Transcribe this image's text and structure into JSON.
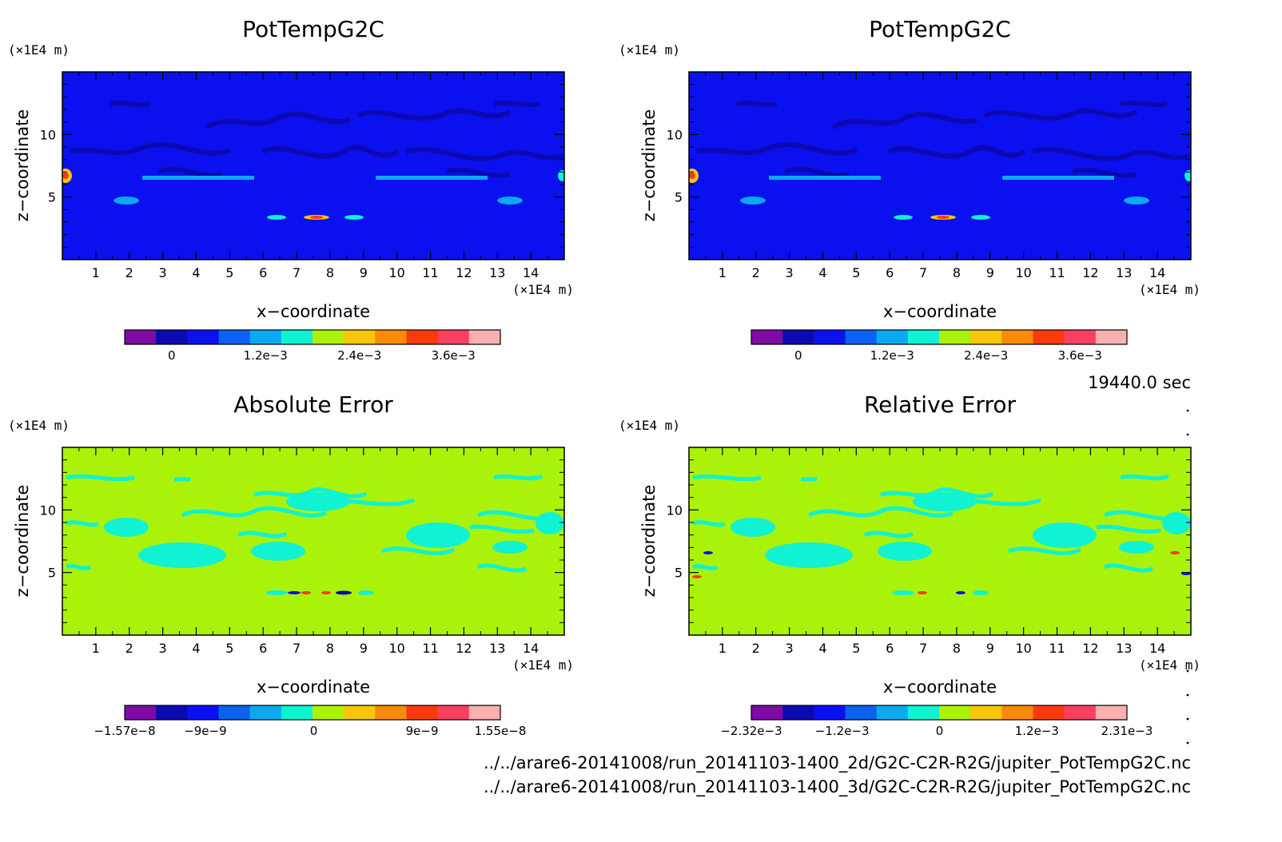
{
  "figure": {
    "time_label": "19440.0 sec",
    "file_lines": [
      "../../arare6-20141008/run_20141103-1400_2d/G2C-C2R-R2G/jupiter_PotTempG2C.nc",
      "../../arare6-20141008/run_20141103-1400_3d/G2C-C2R-R2G/jupiter_PotTempG2C.nc"
    ]
  },
  "colors": {
    "levels_11": [
      "#7f0aa6",
      "#0b0ab0",
      "#0a10ee",
      "#0a62f2",
      "#0aaaf2",
      "#10f2d2",
      "#aaf20a",
      "#f8c60a",
      "#fa8a0a",
      "#fa3a0a",
      "#fa4060",
      "#fab0b0"
    ],
    "background": "#0a10ee",
    "background_error": "#aaf20a",
    "contour_dark": "#0b0ab0",
    "contour_light": "#10f2d2"
  },
  "chart_data": [
    {
      "type": "heatmap",
      "title": "PotTempG2C",
      "xlabel": "x−coordinate",
      "ylabel": "z−coordinate",
      "x_unit": "(×1E4 m)",
      "z_unit": "(×1E4 m)",
      "xlim": [
        0,
        15
      ],
      "ylim": [
        0,
        15
      ],
      "xticks": [
        "1",
        "2",
        "3",
        "4",
        "5",
        "6",
        "7",
        "8",
        "9",
        "10",
        "11",
        "12",
        "13",
        "14"
      ],
      "yticks": [
        "5",
        "10"
      ],
      "dominant_level": 2,
      "colorbar": {
        "labels": [
          "0",
          "1.2e−3",
          "2.4e−3",
          "3.6e−3"
        ],
        "min": -0.0006,
        "max": 0.0042
      }
    },
    {
      "type": "heatmap",
      "title": "PotTempG2C",
      "xlabel": "x−coordinate",
      "ylabel": "z−coordinate",
      "x_unit": "(×1E4 m)",
      "z_unit": "(×1E4 m)",
      "xlim": [
        0,
        15
      ],
      "ylim": [
        0,
        15
      ],
      "xticks": [
        "1",
        "2",
        "3",
        "4",
        "5",
        "6",
        "7",
        "8",
        "9",
        "10",
        "11",
        "12",
        "13",
        "14"
      ],
      "yticks": [
        "5",
        "10"
      ],
      "dominant_level": 2,
      "colorbar": {
        "labels": [
          "0",
          "1.2e−3",
          "2.4e−3",
          "3.6e−3"
        ],
        "min": -0.0006,
        "max": 0.0042
      }
    },
    {
      "type": "heatmap",
      "title": "Absolute Error",
      "xlabel": "x−coordinate",
      "ylabel": "z−coordinate",
      "x_unit": "(×1E4 m)",
      "z_unit": "(×1E4 m)",
      "xlim": [
        0,
        15
      ],
      "ylim": [
        0,
        15
      ],
      "xticks": [
        "1",
        "2",
        "3",
        "4",
        "5",
        "6",
        "7",
        "8",
        "9",
        "10",
        "11",
        "12",
        "13",
        "14"
      ],
      "yticks": [
        "5",
        "10"
      ],
      "dominant_level": 6,
      "colorbar": {
        "labels": [
          "−1.57e−8",
          "−9e−9",
          "0",
          "9e−9",
          "1.55e−8"
        ],
        "min": -1.57e-08,
        "max": 1.55e-08
      }
    },
    {
      "type": "heatmap",
      "title": "Relative Error",
      "xlabel": "x−coordinate",
      "ylabel": "z−coordinate",
      "x_unit": "(×1E4 m)",
      "z_unit": "(×1E4 m)",
      "xlim": [
        0,
        15
      ],
      "ylim": [
        0,
        15
      ],
      "xticks": [
        "1",
        "2",
        "3",
        "4",
        "5",
        "6",
        "7",
        "8",
        "9",
        "10",
        "11",
        "12",
        "13",
        "14"
      ],
      "yticks": [
        "5",
        "10"
      ],
      "dominant_level": 6,
      "colorbar": {
        "labels": [
          "−2.32e−3",
          "−1.2e−3",
          "0",
          "1.2e−3",
          "2.31e−3"
        ],
        "min": -0.00232,
        "max": 0.00231
      }
    }
  ]
}
